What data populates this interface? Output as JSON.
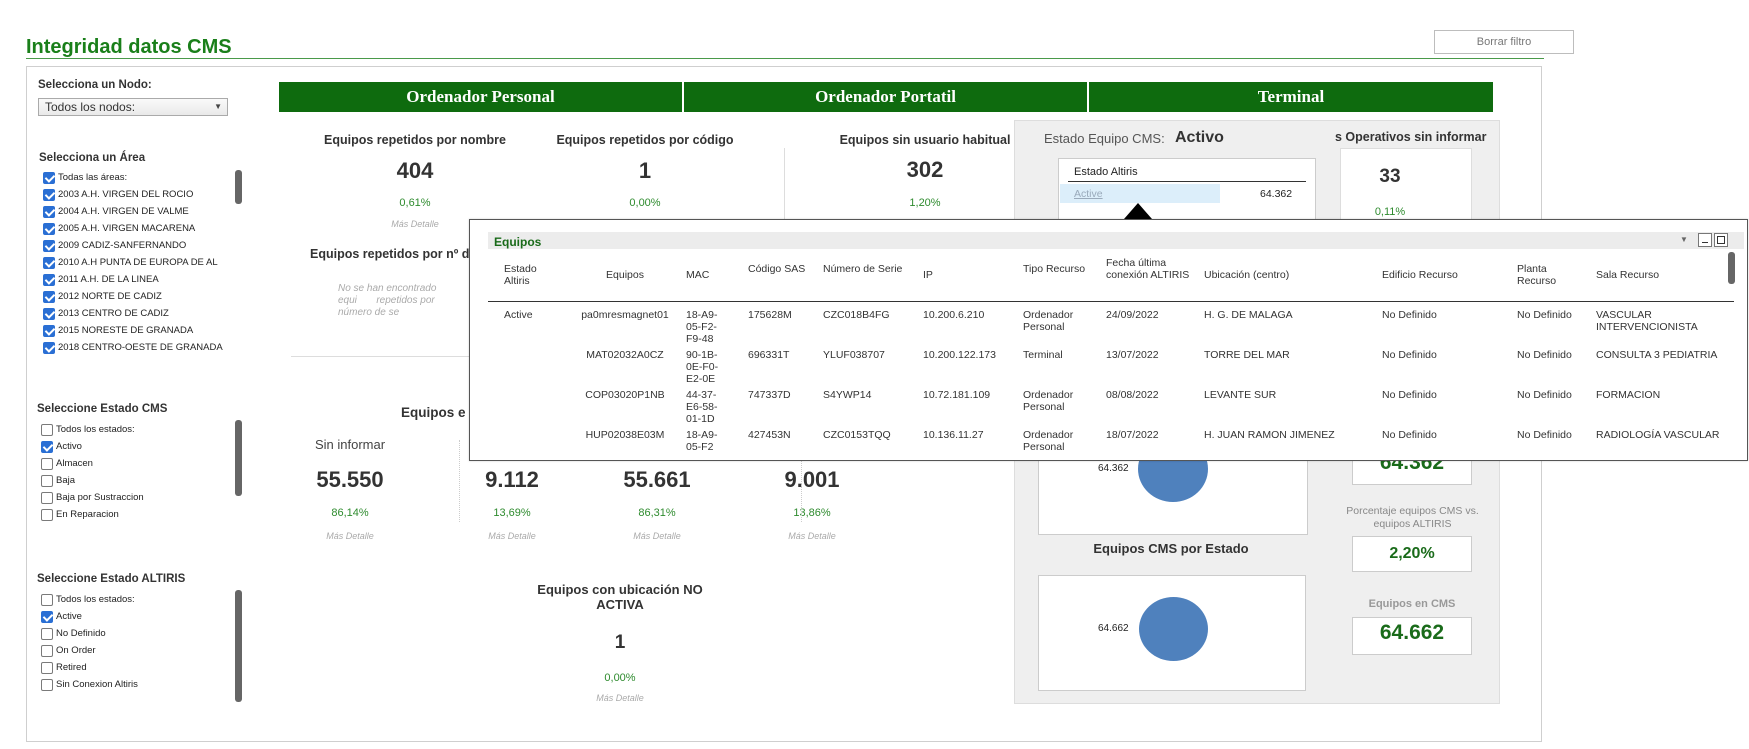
{
  "header": {
    "title": "Integridad datos CMS",
    "clear_filter": "Borrar filtro"
  },
  "sidebar": {
    "node_label": "Selecciona un Nodo:",
    "node_value": "Todos los nodos:",
    "area_label": "Selecciona un Área",
    "areas": [
      {
        "label": "Todas las áreas:",
        "checked": true
      },
      {
        "label": "2003 A.H. VIRGEN DEL ROCIO",
        "checked": true
      },
      {
        "label": "2004 A.H. VIRGEN DE VALME",
        "checked": true
      },
      {
        "label": "2005 A.H. VIRGEN MACARENA",
        "checked": true
      },
      {
        "label": "2009 CADIZ-SANFERNANDO",
        "checked": true
      },
      {
        "label": "2010 A.H PUNTA DE EUROPA DE AL",
        "checked": true
      },
      {
        "label": "2011 A.H. DE LA LINEA",
        "checked": true
      },
      {
        "label": "2012 NORTE DE CADIZ",
        "checked": true
      },
      {
        "label": "2013 CENTRO DE CADIZ",
        "checked": true
      },
      {
        "label": "2015 NORESTE DE GRANADA",
        "checked": true
      },
      {
        "label": "2018 CENTRO-OESTE DE GRANADA",
        "checked": true
      }
    ],
    "cms_label": "Seleccione Estado CMS",
    "cms_states": [
      {
        "label": "Todos los estados:",
        "checked": false
      },
      {
        "label": "Activo",
        "checked": true
      },
      {
        "label": "Almacen",
        "checked": false
      },
      {
        "label": "Baja",
        "checked": false
      },
      {
        "label": "Baja por Sustraccion",
        "checked": false
      },
      {
        "label": "En Reparacion",
        "checked": false
      }
    ],
    "altiris_label": "Seleccione Estado ALTIRIS",
    "altiris_states": [
      {
        "label": "Todos los estados:",
        "checked": false
      },
      {
        "label": "Active",
        "checked": true
      },
      {
        "label": "No Definido",
        "checked": false
      },
      {
        "label": "On Order",
        "checked": false
      },
      {
        "label": "Retired",
        "checked": false
      },
      {
        "label": "Sin Conexion Altiris",
        "checked": false
      }
    ]
  },
  "categories": [
    "Ordenador Personal",
    "Ordenador Portatil",
    "Terminal"
  ],
  "kpis": {
    "rep_nombre": {
      "title": "Equipos repetidos por nombre",
      "value": "404",
      "pct": "0,61%",
      "more": "Más Detalle"
    },
    "rep_codigo": {
      "title": "Equipos repetidos por código",
      "value": "1",
      "pct": "0,00%"
    },
    "sin_usuario": {
      "title": "Equipos sin usuario habitual",
      "value": "302",
      "pct": "1,20%"
    },
    "so_sin_informar": {
      "title": "s Operativos sin informar",
      "value": "33",
      "pct": "0,11%"
    },
    "rep_serie": {
      "title": "Equipos repetidos por nº d",
      "empty": "No se han encontrado equi       repetidos por número de se"
    },
    "equipos_partial": "Equipos e",
    "row": [
      {
        "sub": "Sin informar",
        "value": "55.550",
        "pct": "86,14%",
        "more": "Más Detalle"
      },
      {
        "sub": "",
        "value": "9.112",
        "pct": "13,69%",
        "more": "Más Detalle"
      },
      {
        "sub": "",
        "value": "55.661",
        "pct": "86,31%",
        "more": "Más Detalle"
      },
      {
        "sub": "",
        "value": "9.001",
        "pct": "13,86%",
        "more": "Más Detalle"
      }
    ],
    "ubicacion": {
      "title": "Equipos con ubicación NO ACTIVA",
      "value": "1",
      "pct": "0,00%",
      "more": "Más Detalle"
    }
  },
  "right_panel": {
    "estado_label": "Estado Equipo CMS:",
    "estado_value": "Activo",
    "altiris_box_title": "Estado Altiris",
    "altiris_row_label": "Active",
    "altiris_row_value": "64.362",
    "pie1_label": "64.362",
    "big1": "64.362",
    "porcentaje_label": "Porcentaje equipos CMS vs. equipos ALTIRIS",
    "porcentaje_value": "2,20%",
    "cms_por_estado": "Equipos CMS por Estado",
    "pie2_label": "64.662",
    "en_cms_label": "Equipos en CMS",
    "en_cms_value": "64.662"
  },
  "popup": {
    "title": "Equipos",
    "columns": [
      "Estado Altiris",
      "Equipos",
      "MAC",
      "Código SAS",
      "Número de Serie",
      "IP",
      "Tipo Recurso",
      "Fecha última conexión ALTIRIS",
      "Ubicación (centro)",
      "Edificio Recurso",
      "Planta Recurso",
      "Sala Recurso"
    ],
    "rows": [
      [
        "Active",
        "pa0mresmagnet01",
        "18-A9-05-F2-F9-48",
        "175628M",
        "CZC018B4FG",
        "10.200.6.210",
        "Ordenador Personal",
        "24/09/2022",
        "H. G. DE MALAGA",
        "No Definido",
        "No Definido",
        "VASCULAR INTERVENCIONISTA"
      ],
      [
        "",
        "MAT02032A0CZ",
        "90-1B-0E-F0-E2-0E",
        "696331T",
        "YLUF038707",
        "10.200.122.173",
        "Terminal",
        "13/07/2022",
        "TORRE DEL MAR",
        "No Definido",
        "No Definido",
        "CONSULTA 3 PEDIATRIA"
      ],
      [
        "",
        "COP03020P1NB",
        "44-37-E6-58-01-1D",
        "747337D",
        "S4YWP14",
        "10.72.181.109",
        "Ordenador Personal",
        "08/08/2022",
        "LEVANTE SUR",
        "No Definido",
        "No Definido",
        "FORMACION"
      ],
      [
        "",
        "HUP02038E03M",
        "18-A9-05-F2",
        "427453N",
        "CZC0153TQQ",
        "10.136.11.27",
        "Ordenador Personal",
        "18/07/2022",
        "H. JUAN RAMON JIMENEZ",
        "No Definido",
        "No Definido",
        "RADIOLOGÍA VASCULAR"
      ]
    ]
  }
}
